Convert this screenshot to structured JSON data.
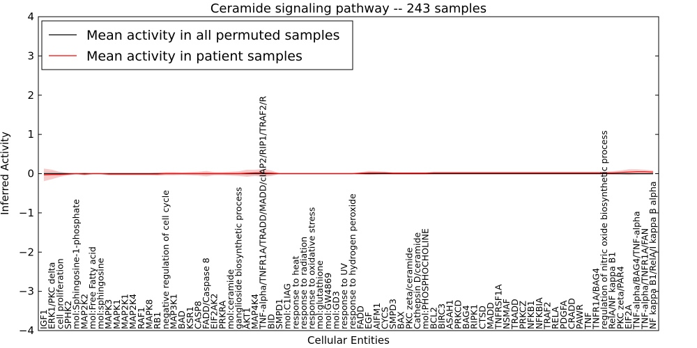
{
  "chart_data": {
    "type": "line",
    "title": "Ceramide signaling pathway -- 243 samples",
    "xlabel": "Cellular Entities",
    "ylabel": "Inferred Activity",
    "ylim": [
      -4,
      4
    ],
    "yticks": [
      -4,
      -3,
      -2,
      -1,
      0,
      1,
      2,
      3,
      4
    ],
    "legend_position": "top-left",
    "categories": [
      "IGF1",
      "ERK1/PKC delta",
      "cell proliferation",
      "SPHK2",
      "mol:Sphingosine-1-phosphate",
      "MAP2K2",
      "mol:Free Fatty acid",
      "mol:sphingosine",
      "MAPK3",
      "MAPK1",
      "MAP2K1",
      "MAP2K4",
      "RAF1",
      "MAPK8",
      "RB1",
      "negative regulation of cell cycle",
      "MAP3K1",
      "BAD",
      "KSR1",
      "CASP8",
      "FADD/Caspase 8",
      "EIF2AK2",
      "PRKRA",
      "mol:ceramide",
      "ganglioside biosynthetic process",
      "AKT1",
      "MAP4K4",
      "TNF-alpha/TNFR1A/TRADD/MADD/cIAP2/RIP1/TRAF2/R",
      "BID",
      "SMPD1",
      "mol:C1IAG",
      "response to heat",
      "response to radiation",
      "response to oxidative stress",
      "mol:glutathione",
      "mol:GW4869",
      "mol:GD3",
      "response to UV",
      "response to hydrogen peroxide",
      "FADD",
      "EGF",
      "AIFM1",
      "CYCS",
      "SMPD3",
      "BAX",
      "PKC zeta/ceramide",
      "Cathepsin D/ceramide",
      "mol:PHOSPHOCHOLINE",
      "BCL2",
      "BIRC3",
      "ASAH1",
      "PRKCD",
      "BAG4",
      "RIPK1",
      "CTSD",
      "MADD",
      "TNFRSF1A",
      "NSMAF",
      "TRADD",
      "PRKCZ",
      "NFKB1",
      "NFKBIA",
      "TRAF2",
      "RELA",
      "PDGFA",
      "CRADD",
      "PAWR",
      "TNF",
      "TNFR1A/BAG4",
      "regulation of nitric oxide biosynthetic process",
      "RelA/NF kappa B1",
      "PKC zeta/PAR4",
      "EIF2A",
      "TNF-alpha/BAG4/TNF-alpha",
      "TNF-alpha/TNFR1A/FAN",
      "NF kappa B1/RelA/I kappa B alpha"
    ],
    "series": [
      {
        "name": "Mean activity in all permuted samples",
        "color": "#000000",
        "band_color": "#bfbfbf",
        "values": [
          0.0,
          0.0,
          0.0,
          0.0,
          0.0,
          0.0,
          0.0,
          0.0,
          0.0,
          0.0,
          0.0,
          0.0,
          0.0,
          0.0,
          0.0,
          0.0,
          0.0,
          0.0,
          0.0,
          0.0,
          0.0,
          0.0,
          0.0,
          0.0,
          0.0,
          0.0,
          0.0,
          0.0,
          0.0,
          0.0,
          0.0,
          0.0,
          0.0,
          0.0,
          0.0,
          0.0,
          0.0,
          0.0,
          0.0,
          0.0,
          0.0,
          0.0,
          0.0,
          0.0,
          0.0,
          0.0,
          0.0,
          0.0,
          0.0,
          0.0,
          0.0,
          0.0,
          0.0,
          0.0,
          0.0,
          0.0,
          0.0,
          0.0,
          0.0,
          0.0,
          0.0,
          0.0,
          0.0,
          0.0,
          0.0,
          0.0,
          0.0,
          0.0,
          0.0,
          0.0,
          0.0,
          0.0,
          0.0,
          0.0,
          0.0,
          0.0
        ],
        "spread": [
          0.05,
          0.06,
          0.05,
          0.02,
          0.01,
          0.03,
          0.01,
          0.01,
          0.02,
          0.02,
          0.02,
          0.02,
          0.02,
          0.02,
          0.02,
          0.02,
          0.02,
          0.02,
          0.02,
          0.02,
          0.03,
          0.02,
          0.02,
          0.03,
          0.03,
          0.05,
          0.04,
          0.06,
          0.04,
          0.01,
          0.01,
          0.01,
          0.01,
          0.01,
          0.01,
          0.01,
          0.01,
          0.01,
          0.01,
          0.01,
          0.02,
          0.02,
          0.02,
          0.02,
          0.02,
          0.02,
          0.02,
          0.02,
          0.02,
          0.02,
          0.02,
          0.02,
          0.02,
          0.02,
          0.02,
          0.02,
          0.02,
          0.02,
          0.02,
          0.02,
          0.02,
          0.02,
          0.02,
          0.02,
          0.02,
          0.02,
          0.02,
          0.02,
          0.02,
          0.02,
          0.02,
          0.02,
          0.03,
          0.03,
          0.03,
          0.03
        ]
      },
      {
        "name": "Mean activity in patient samples",
        "color": "#ff0000",
        "band_color": "#f4a6a6",
        "values": [
          -0.03,
          -0.02,
          -0.02,
          -0.01,
          0.0,
          -0.01,
          0.0,
          0.0,
          -0.01,
          -0.01,
          -0.01,
          -0.01,
          -0.01,
          -0.01,
          -0.01,
          0.0,
          0.0,
          0.0,
          0.0,
          0.0,
          0.0,
          0.0,
          0.0,
          0.0,
          0.0,
          0.01,
          0.02,
          0.02,
          0.01,
          0.0,
          0.0,
          0.0,
          0.0,
          0.0,
          0.0,
          0.0,
          0.0,
          0.0,
          0.0,
          0.01,
          0.02,
          0.02,
          0.02,
          0.01,
          0.01,
          0.01,
          0.01,
          0.01,
          0.02,
          0.02,
          0.02,
          0.02,
          0.02,
          0.02,
          0.02,
          0.02,
          0.02,
          0.02,
          0.02,
          0.02,
          0.02,
          0.02,
          0.02,
          0.02,
          0.02,
          0.02,
          0.02,
          0.02,
          0.02,
          0.02,
          0.02,
          0.03,
          0.04,
          0.05,
          0.05,
          0.04
        ],
        "spread": [
          0.16,
          0.12,
          0.06,
          0.03,
          0.01,
          0.03,
          0.01,
          0.01,
          0.03,
          0.03,
          0.03,
          0.03,
          0.03,
          0.03,
          0.04,
          0.04,
          0.04,
          0.03,
          0.04,
          0.05,
          0.07,
          0.04,
          0.04,
          0.05,
          0.06,
          0.09,
          0.08,
          0.1,
          0.07,
          0.01,
          0.01,
          0.01,
          0.01,
          0.01,
          0.01,
          0.01,
          0.01,
          0.01,
          0.01,
          0.03,
          0.05,
          0.04,
          0.03,
          0.03,
          0.03,
          0.03,
          0.03,
          0.03,
          0.03,
          0.03,
          0.03,
          0.03,
          0.03,
          0.03,
          0.03,
          0.03,
          0.03,
          0.03,
          0.03,
          0.03,
          0.03,
          0.03,
          0.03,
          0.03,
          0.03,
          0.03,
          0.03,
          0.03,
          0.03,
          0.03,
          0.04,
          0.05,
          0.07,
          0.06,
          0.05,
          0.04
        ]
      }
    ]
  }
}
